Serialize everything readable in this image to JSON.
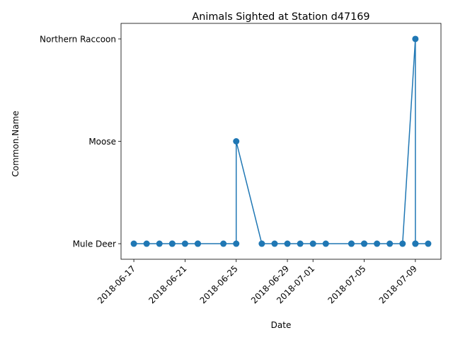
{
  "chart_data": {
    "type": "line",
    "title": "Animals Sighted at Station d47169",
    "xlabel": "Date",
    "ylabel": "Common.Name",
    "y_categories": [
      "Mule Deer",
      "Moose",
      "Northern Raccoon"
    ],
    "x_ticks": [
      "2018-06-17",
      "2018-06-21",
      "2018-06-25",
      "2018-06-29",
      "2018-07-01",
      "2018-07-05",
      "2018-07-09"
    ],
    "xlim": [
      "2018-06-16",
      "2018-07-11"
    ],
    "grid": false,
    "legend": "none",
    "color": "#1f77b4",
    "series": [
      {
        "points": [
          {
            "x": "2018-06-17",
            "y": "Mule Deer"
          },
          {
            "x": "2018-06-18",
            "y": "Mule Deer"
          },
          {
            "x": "2018-06-19",
            "y": "Mule Deer"
          },
          {
            "x": "2018-06-20",
            "y": "Mule Deer"
          },
          {
            "x": "2018-06-20",
            "y": "Mule Deer"
          },
          {
            "x": "2018-06-21",
            "y": "Mule Deer"
          },
          {
            "x": "2018-06-22",
            "y": "Mule Deer"
          },
          {
            "x": "2018-06-22",
            "y": "Mule Deer"
          },
          {
            "x": "2018-06-24",
            "y": "Mule Deer"
          },
          {
            "x": "2018-06-25",
            "y": "Mule Deer"
          },
          {
            "x": "2018-06-25",
            "y": "Moose"
          },
          {
            "x": "2018-06-27",
            "y": "Mule Deer"
          },
          {
            "x": "2018-06-28",
            "y": "Mule Deer"
          },
          {
            "x": "2018-06-29",
            "y": "Mule Deer"
          },
          {
            "x": "2018-06-30",
            "y": "Mule Deer"
          },
          {
            "x": "2018-07-01",
            "y": "Mule Deer"
          },
          {
            "x": "2018-07-02",
            "y": "Mule Deer"
          },
          {
            "x": "2018-07-04",
            "y": "Mule Deer"
          },
          {
            "x": "2018-07-04",
            "y": "Mule Deer"
          },
          {
            "x": "2018-07-05",
            "y": "Mule Deer"
          },
          {
            "x": "2018-07-05",
            "y": "Mule Deer"
          },
          {
            "x": "2018-07-06",
            "y": "Mule Deer"
          },
          {
            "x": "2018-07-07",
            "y": "Mule Deer"
          },
          {
            "x": "2018-07-08",
            "y": "Mule Deer"
          },
          {
            "x": "2018-07-09",
            "y": "Northern Raccoon"
          },
          {
            "x": "2018-07-09",
            "y": "Mule Deer"
          },
          {
            "x": "2018-07-09",
            "y": "Mule Deer"
          },
          {
            "x": "2018-07-10",
            "y": "Mule Deer"
          }
        ]
      }
    ]
  }
}
